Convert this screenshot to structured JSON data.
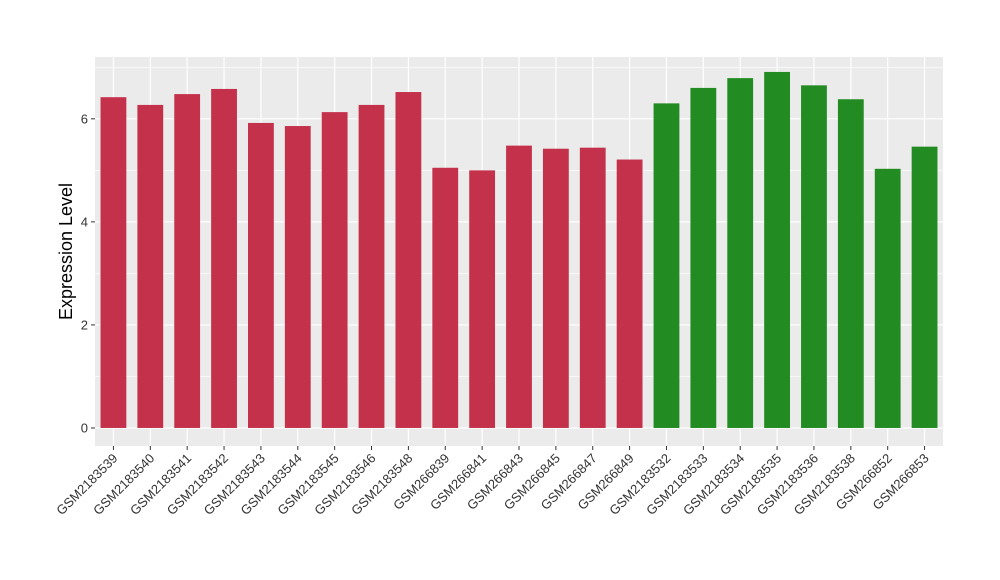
{
  "chart_data": {
    "type": "bar",
    "title": "",
    "xlabel": "",
    "ylabel": "Expression Level",
    "ylim": [
      0,
      7.2
    ],
    "yticks": [
      0,
      2,
      4,
      6
    ],
    "grid": true,
    "background": "#EBEBEB",
    "categories": [
      "GSM2183539",
      "GSM2183540",
      "GSM2183541",
      "GSM2183542",
      "GSM2183543",
      "GSM2183544",
      "GSM2183545",
      "GSM2183546",
      "GSM2183548",
      "GSM266839",
      "GSM266841",
      "GSM266843",
      "GSM266845",
      "GSM266847",
      "GSM266849",
      "GSM2183532",
      "GSM2183533",
      "GSM2183534",
      "GSM2183535",
      "GSM2183536",
      "GSM2183538",
      "GSM266852",
      "GSM266853"
    ],
    "values": [
      6.42,
      6.27,
      6.48,
      6.58,
      5.92,
      5.86,
      6.13,
      6.27,
      6.52,
      5.05,
      5.0,
      5.48,
      5.42,
      5.44,
      5.21,
      6.3,
      6.6,
      6.79,
      6.91,
      6.65,
      6.38,
      5.03,
      5.46
    ],
    "groups": [
      "a",
      "a",
      "a",
      "a",
      "a",
      "a",
      "a",
      "a",
      "a",
      "a",
      "a",
      "a",
      "a",
      "a",
      "a",
      "b",
      "b",
      "b",
      "b",
      "b",
      "b",
      "b",
      "b"
    ],
    "group_colors": {
      "a": "#C4314B",
      "b": "#228B22"
    }
  }
}
